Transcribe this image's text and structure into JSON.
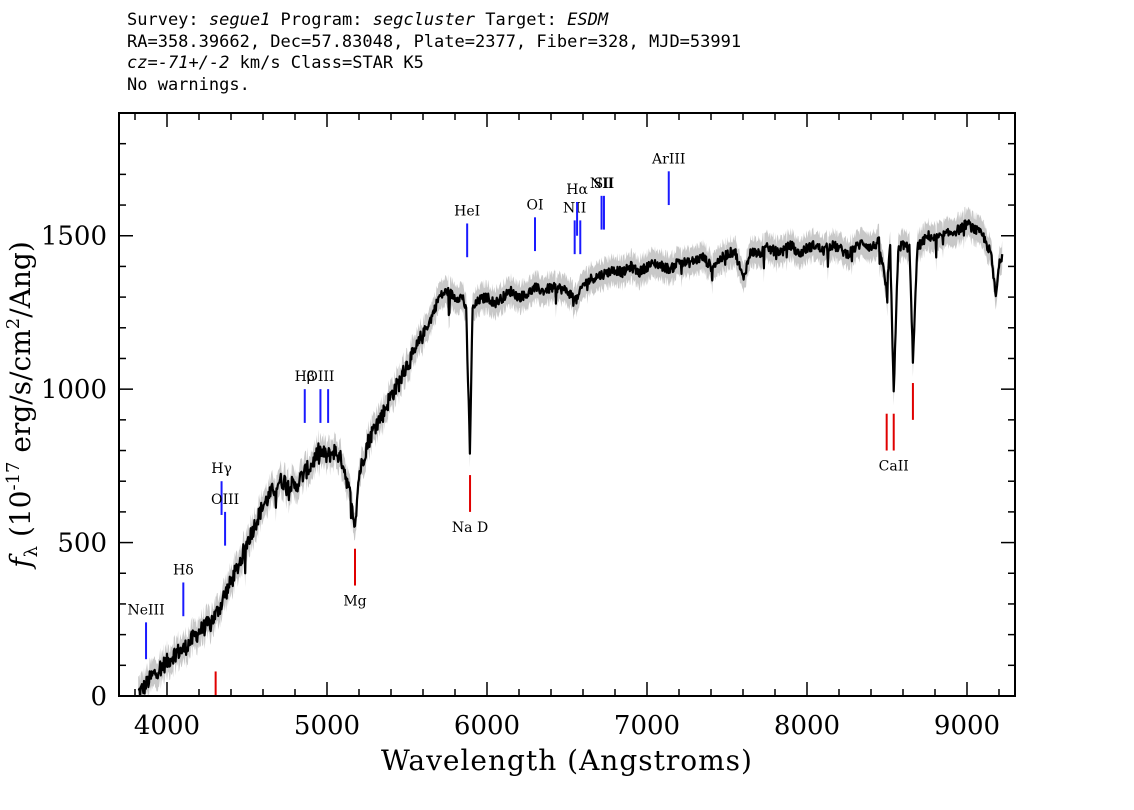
{
  "header": {
    "survey_label": "Survey: ",
    "survey": "segue1",
    "program_label": " Program: ",
    "program": "segcluster",
    "target_label": " Target: ",
    "target": "ESDM",
    "line2": "RA=358.39662, Dec=57.83048, Plate=2377, Fiber=328, MJD=53991",
    "cz_label": "cz",
    "cz_eq": "=",
    "cz_value": "-71+/-2",
    "cz_units": " km/s Class=STAR K5",
    "line4": "No warnings."
  },
  "chart_data": {
    "type": "line",
    "title": "",
    "xlabel": "Wavelength (Angstroms)",
    "ylabel_prefix": "f",
    "ylabel_sub": "λ",
    "ylabel_paren": " (10",
    "ylabel_exp": "-17",
    "ylabel_units": " erg/s/cm",
    "ylabel_exp2": "2",
    "ylabel_tail": "/Ang)",
    "xlim": [
      3700,
      9300
    ],
    "ylim": [
      0,
      1900
    ],
    "xticks": [
      4000,
      5000,
      6000,
      7000,
      8000,
      9000
    ],
    "yticks": [
      0,
      500,
      1000,
      1500
    ],
    "series": [
      {
        "name": "flux",
        "color": "#000000",
        "x": [
          3820,
          3860,
          3900,
          3950,
          4000,
          4050,
          4100,
          4150,
          4200,
          4250,
          4300,
          4340,
          4350,
          4400,
          4450,
          4500,
          4550,
          4600,
          4650,
          4700,
          4750,
          4800,
          4861,
          4900,
          4950,
          5000,
          5050,
          5100,
          5150,
          5175,
          5200,
          5250,
          5300,
          5350,
          5400,
          5450,
          5500,
          5550,
          5600,
          5650,
          5700,
          5750,
          5800,
          5850,
          5870,
          5893,
          5910,
          5950,
          6000,
          6050,
          6100,
          6150,
          6200,
          6250,
          6300,
          6350,
          6400,
          6450,
          6500,
          6563,
          6600,
          6650,
          6700,
          6750,
          6800,
          6850,
          6900,
          6950,
          7000,
          7050,
          7100,
          7150,
          7200,
          7250,
          7300,
          7350,
          7400,
          7450,
          7500,
          7550,
          7600,
          7650,
          7700,
          7750,
          7800,
          7850,
          7900,
          7950,
          8000,
          8050,
          8100,
          8150,
          8200,
          8250,
          8300,
          8350,
          8400,
          8450,
          8498,
          8520,
          8542,
          8570,
          8600,
          8640,
          8662,
          8690,
          8720,
          8760,
          8800,
          8850,
          8900,
          8950,
          9000,
          9050,
          9100,
          9150,
          9180,
          9200,
          9220
        ],
        "y": [
          10,
          30,
          60,
          90,
          110,
          140,
          150,
          180,
          210,
          230,
          260,
          300,
          320,
          370,
          430,
          500,
          560,
          620,
          660,
          700,
          700,
          680,
          730,
          750,
          800,
          780,
          800,
          760,
          640,
          560,
          720,
          820,
          880,
          920,
          980,
          1020,
          1080,
          1120,
          1180,
          1230,
          1300,
          1320,
          1300,
          1300,
          1250,
          800,
          1260,
          1290,
          1300,
          1280,
          1300,
          1320,
          1300,
          1310,
          1330,
          1320,
          1330,
          1330,
          1320,
          1290,
          1340,
          1360,
          1370,
          1380,
          1390,
          1380,
          1400,
          1380,
          1400,
          1410,
          1400,
          1390,
          1420,
          1410,
          1420,
          1430,
          1400,
          1420,
          1440,
          1450,
          1360,
          1450,
          1440,
          1460,
          1450,
          1450,
          1470,
          1440,
          1460,
          1470,
          1450,
          1470,
          1460,
          1440,
          1460,
          1480,
          1460,
          1480,
          1320,
          1460,
          980,
          1460,
          1470,
          1460,
          1100,
          1460,
          1480,
          1500,
          1490,
          1500,
          1510,
          1520,
          1540,
          1520,
          1500,
          1440,
          1300,
          1400,
          1440
        ],
        "error_band": 45
      }
    ],
    "emission_lines": [
      {
        "label": "NeIII",
        "x": 3869,
        "y_low": 120,
        "y_high": 240
      },
      {
        "label": "Hδ",
        "x": 4102,
        "y_low": 260,
        "y_high": 370
      },
      {
        "label": "Hγ",
        "x": 4341,
        "y_low": 590,
        "y_high": 700
      },
      {
        "label": "OIII",
        "x": 4363,
        "y_low": 490,
        "y_high": 600
      },
      {
        "label": "Hβ",
        "x": 4861,
        "y_low": 890,
        "y_high": 1000
      },
      {
        "label": "OIII",
        "x": 4959,
        "y_low": 890,
        "y_high": 1000
      },
      {
        "label": "",
        "x": 5007,
        "y_low": 890,
        "y_high": 1000
      },
      {
        "label": "HeI",
        "x": 5876,
        "y_low": 1430,
        "y_high": 1540
      },
      {
        "label": "OI",
        "x": 6300,
        "y_low": 1450,
        "y_high": 1560
      },
      {
        "label": "NII",
        "x": 6548,
        "y_low": 1440,
        "y_high": 1550
      },
      {
        "label": "Hα",
        "x": 6563,
        "y_low": 1500,
        "y_high": 1610
      },
      {
        "label": "",
        "x": 6583,
        "y_low": 1440,
        "y_high": 1550
      },
      {
        "label": "NII",
        "x": 6716,
        "y_low": 1520,
        "y_high": 1630
      },
      {
        "label": "SII",
        "x": 6731,
        "y_low": 1520,
        "y_high": 1630
      },
      {
        "label": "ArIII",
        "x": 7136,
        "y_low": 1600,
        "y_high": 1710
      }
    ],
    "absorption_lines": [
      {
        "label": "",
        "x": 4304,
        "y_low": 0,
        "y_high": 80
      },
      {
        "label": "Mg",
        "x": 5175,
        "y_low": 360,
        "y_high": 480
      },
      {
        "label": "Na D",
        "x": 5894,
        "y_low": 600,
        "y_high": 720
      },
      {
        "label": "",
        "x": 8498,
        "y_low": 800,
        "y_high": 920
      },
      {
        "label": "CaII",
        "x": 8542,
        "y_low": 800,
        "y_high": 920
      },
      {
        "label": "",
        "x": 8662,
        "y_low": 900,
        "y_high": 1020
      }
    ],
    "emission_color": "#1a1aff",
    "absorption_color": "#e00000",
    "band_color": "#c8c8c8"
  }
}
